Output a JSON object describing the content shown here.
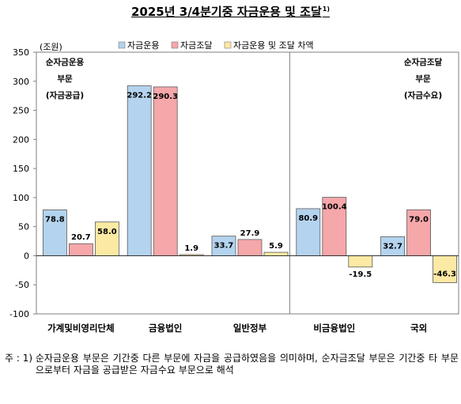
{
  "title": "2025년 3/4분기중 자금운용 및 조달",
  "title_sup": "1)",
  "chart_data": {
    "type": "bar",
    "ylabel": "(조원)",
    "ylim": [
      -100,
      350
    ],
    "yticks": [
      -100,
      -50,
      0,
      50,
      100,
      150,
      200,
      250,
      300,
      350
    ],
    "categories": [
      "가계및비영리단체",
      "금융법인",
      "일반정부",
      "비금융법인",
      "국외"
    ],
    "series": [
      {
        "name": "자금운용",
        "color": "#b4d3ee",
        "values": [
          78.8,
          292.2,
          33.7,
          80.9,
          32.7
        ],
        "labels": [
          "78.8",
          "292.2",
          "33.7",
          "80.9",
          "32.7"
        ]
      },
      {
        "name": "자금조달",
        "color": "#f5a7aa",
        "values": [
          20.7,
          290.3,
          27.9,
          100.4,
          79.0
        ],
        "labels": [
          "20.7",
          "290.3",
          "27.9",
          "100.4",
          "79.0"
        ]
      },
      {
        "name": "자금운용 및 조달 차액",
        "color": "#fce9a4",
        "values": [
          58.0,
          1.9,
          5.9,
          -19.5,
          -46.3
        ],
        "labels": [
          "58.0",
          "1.9",
          "5.9",
          "-19.5",
          "-46.3"
        ]
      }
    ],
    "annotations": {
      "left": [
        "순자금운용",
        "부문",
        "(자금공급)"
      ],
      "right": [
        "순자금조달",
        "부문",
        "(자금수요)"
      ]
    },
    "grid": false,
    "legend_position": "top"
  },
  "note": {
    "label": "주 : 1)",
    "text": "순자금운용 부문은 기간중 다른 부문에 자금을 공급하였음을 의미하며, 순자금조달 부문은 기간중 타 부문으로부터 자금을 공급받은 자금수요 부문으로 해석"
  }
}
